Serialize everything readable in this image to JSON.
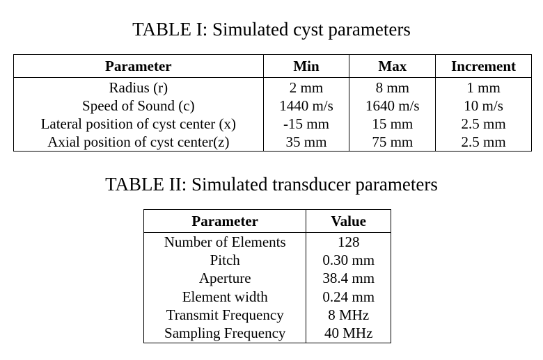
{
  "table1": {
    "caption": "TABLE I: Simulated cyst parameters",
    "headers": [
      "Parameter",
      "Min",
      "Max",
      "Increment"
    ],
    "rows": [
      [
        "Radius (r)",
        "2 mm",
        "8 mm",
        "1 mm"
      ],
      [
        "Speed of Sound (c)",
        "1440 m/s",
        "1640 m/s",
        "10 m/s"
      ],
      [
        "Lateral position of cyst center (x)",
        "-15 mm",
        "15 mm",
        "2.5 mm"
      ],
      [
        "Axial position of cyst center(z)",
        "35 mm",
        "75 mm",
        "2.5 mm"
      ]
    ]
  },
  "table2": {
    "caption": "TABLE II: Simulated transducer parameters",
    "headers": [
      "Parameter",
      "Value"
    ],
    "rows": [
      [
        "Number of Elements",
        "128"
      ],
      [
        "Pitch",
        "0.30 mm"
      ],
      [
        "Aperture",
        "38.4 mm"
      ],
      [
        "Element width",
        "0.24 mm"
      ],
      [
        "Transmit Frequency",
        "8 MHz"
      ],
      [
        "Sampling Frequency",
        "40 MHz"
      ]
    ]
  }
}
